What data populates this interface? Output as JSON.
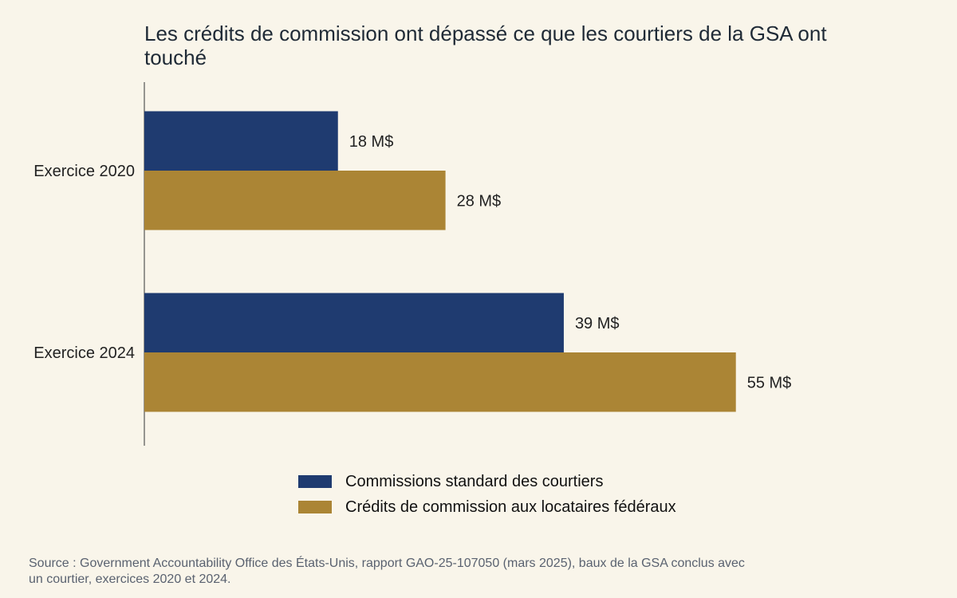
{
  "chart_data": {
    "type": "bar",
    "orientation": "horizontal",
    "title": "Les crédits de commission ont dépassé ce que les courtiers de la GSA ont touché",
    "categories": [
      "Exercice 2020",
      "Exercice 2024"
    ],
    "series": [
      {
        "name": "Commissions standard des courtiers",
        "values": [
          18,
          39
        ],
        "labels": [
          "18 M$",
          "39 M$"
        ],
        "color": "#1f3b70"
      },
      {
        "name": "Crédits de commission aux locataires fédéraux",
        "values": [
          28,
          55
        ],
        "labels": [
          "28 M$",
          "55 M$"
        ],
        "color": "#ab8535"
      }
    ],
    "xlim": [
      0,
      70
    ],
    "xlabel": "",
    "ylabel": "",
    "grid": false,
    "legend": "bottom",
    "source": "Source : Government Accountability Office des États-Unis, rapport GAO-25-107050 (mars 2025), baux de la GSA conclus avec un courtier, exercices 2020 et 2024."
  },
  "colors": {
    "background": "#f9f5ea",
    "axis": "#555555"
  }
}
